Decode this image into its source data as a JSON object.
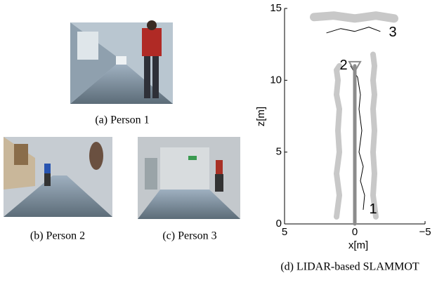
{
  "subfigures": [
    {
      "caption": "(a) Person 1"
    },
    {
      "caption": "(b) Person 2"
    },
    {
      "caption": "(c) Person 3"
    },
    {
      "caption": "(d) LIDAR-based SLAMMOT"
    }
  ],
  "chart_data": {
    "type": "line",
    "x_label": "x[m]",
    "y_label": "z[m]",
    "xlim": [
      5,
      -5
    ],
    "ylim": [
      0,
      15
    ],
    "xticks": [
      5,
      0,
      {
        "value": -5,
        "label": "−5"
      }
    ],
    "yticks": [
      0,
      5,
      10,
      15
    ],
    "series": [
      {
        "color": "#c8c8c8",
        "x": [
          1.3,
          1.1,
          1.3,
          1.1,
          1.2,
          1.1,
          1.3,
          1.2,
          1.3,
          1.1
        ],
        "values": [
          0.5,
          2,
          3.5,
          5,
          6.5,
          8,
          9,
          10,
          10.7,
          11
        ]
      },
      {
        "color": "#c8c8c8",
        "x": [
          -1.5,
          -1.3,
          -1.4,
          -1.3,
          -1.4,
          -1.3,
          -1.4,
          -1.3,
          -1.4,
          -1.3
        ],
        "values": [
          0.5,
          2,
          3.5,
          5,
          6.5,
          8,
          9,
          10,
          11,
          11.8
        ]
      },
      {
        "color": "#c8c8c8",
        "x": [
          2.9,
          1.5,
          0,
          -1.5,
          -2.8
        ],
        "values": [
          14.4,
          14.5,
          14.3,
          14.5,
          14.3
        ]
      },
      {
        "name": "1",
        "color": "#000000",
        "x": [
          0.3,
          -0.2,
          -0.4,
          -0.3,
          -0.5,
          -0.3,
          -0.6,
          -0.4,
          -0.7,
          -0.6
        ],
        "values": [
          11,
          10.2,
          9,
          8,
          6.5,
          5,
          4,
          3,
          2,
          1
        ]
      },
      {
        "name": "2",
        "color": "#8c8c8c",
        "x": [
          0,
          0,
          0,
          0
        ],
        "values": [
          0,
          4,
          8,
          11
        ]
      },
      {
        "name": "3",
        "color": "#000000",
        "x": [
          2.0,
          1.0,
          0,
          -1.0,
          -1.8
        ],
        "values": [
          13.3,
          13.6,
          13.4,
          13.7,
          13.4
        ]
      }
    ]
  }
}
